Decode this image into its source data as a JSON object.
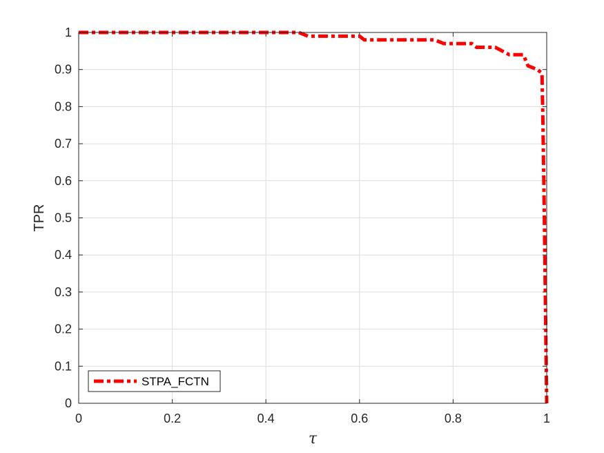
{
  "chart_data": {
    "type": "line",
    "xlabel": "τ",
    "ylabel": "TPR",
    "xlim": [
      0,
      1
    ],
    "ylim": [
      0,
      1
    ],
    "xticks": [
      "0",
      "0.2",
      "0.4",
      "0.6",
      "0.8",
      "1"
    ],
    "yticks": [
      "0",
      "0.1",
      "0.2",
      "0.3",
      "0.4",
      "0.5",
      "0.6",
      "0.7",
      "0.8",
      "0.9",
      "1"
    ],
    "grid": true,
    "legend_position": "bottom-left",
    "series": [
      {
        "name": "STPA_FCTN",
        "color": "#ff0000",
        "style": "dash-dot",
        "x": [
          0,
          0.47,
          0.49,
          0.6,
          0.61,
          0.76,
          0.78,
          0.84,
          0.85,
          0.89,
          0.92,
          0.95,
          0.96,
          0.98,
          0.99,
          0.992,
          0.995,
          0.998,
          1.0
        ],
        "y": [
          1.0,
          1.0,
          0.99,
          0.99,
          0.98,
          0.98,
          0.97,
          0.97,
          0.96,
          0.96,
          0.94,
          0.94,
          0.91,
          0.9,
          0.89,
          0.75,
          0.5,
          0.2,
          0.0
        ]
      }
    ]
  }
}
